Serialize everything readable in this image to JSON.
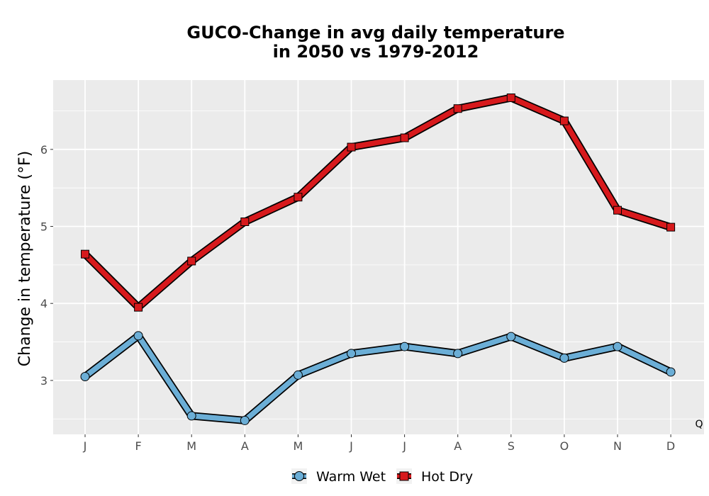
{
  "chart_data": {
    "type": "line",
    "title": "GUCO-Change in avg daily temperature",
    "subtitle": "in 2050 vs 1979-2012",
    "xlabel": "",
    "ylabel": "Change in temperature (°F)",
    "categories": [
      "J",
      "F",
      "M",
      "A",
      "M",
      "J",
      "J",
      "A",
      "S",
      "O",
      "N",
      "D"
    ],
    "yticks": [
      3,
      4,
      5,
      6
    ],
    "ylim": [
      2.3,
      6.9
    ],
    "grid": true,
    "legend_position": "bottom",
    "corner_annotation": "Q",
    "series": [
      {
        "name": "Warm Wet",
        "values": [
          3.05,
          3.58,
          2.54,
          2.48,
          3.07,
          3.35,
          3.44,
          3.35,
          3.57,
          3.29,
          3.44,
          3.11
        ],
        "color": "#6BAED6",
        "marker": "circle"
      },
      {
        "name": "Hot Dry",
        "values": [
          4.64,
          3.95,
          4.55,
          5.06,
          5.38,
          6.03,
          6.15,
          6.53,
          6.67,
          6.37,
          5.21,
          4.99
        ],
        "color": "#D7191C",
        "marker": "square"
      }
    ]
  },
  "colors": {
    "panel_background": "#EBEBEB",
    "grid_line": "#FFFFFF",
    "outline": "#000000"
  }
}
